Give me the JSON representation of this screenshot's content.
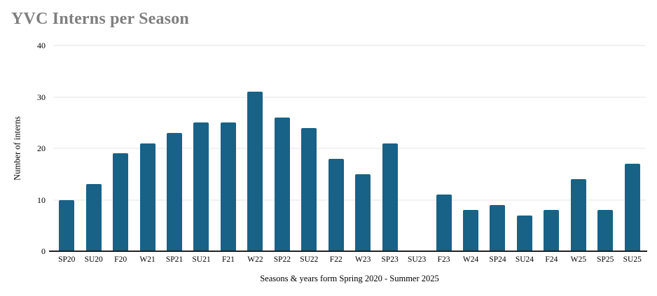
{
  "chart_data": {
    "type": "bar",
    "title": "YVC Interns per Season",
    "xlabel": "Seasons & years form Spring 2020 - Summer 2025",
    "ylabel": "Number of interns",
    "categories": [
      "SP20",
      "SU20",
      "F20",
      "W21",
      "SP21",
      "SU21",
      "F21",
      "W22",
      "SP22",
      "SU22",
      "F22",
      "W23",
      "SP23",
      "SU23",
      "F23",
      "W24",
      "SP24",
      "SU24",
      "F24",
      "W25",
      "SP25",
      "SU25"
    ],
    "values": [
      10,
      13,
      19,
      21,
      23,
      25,
      25,
      31,
      26,
      24,
      18,
      15,
      21,
      0,
      11,
      8,
      9,
      7,
      8,
      14,
      8,
      17
    ],
    "ylim": [
      0,
      40
    ],
    "yticks": [
      0,
      10,
      20,
      30,
      40
    ],
    "grid": true,
    "legend": "none",
    "bar_color": "#186287",
    "gridline_color": "#e4e4e4",
    "axis_color": "#212121",
    "title_color": "#7f7f7f"
  }
}
